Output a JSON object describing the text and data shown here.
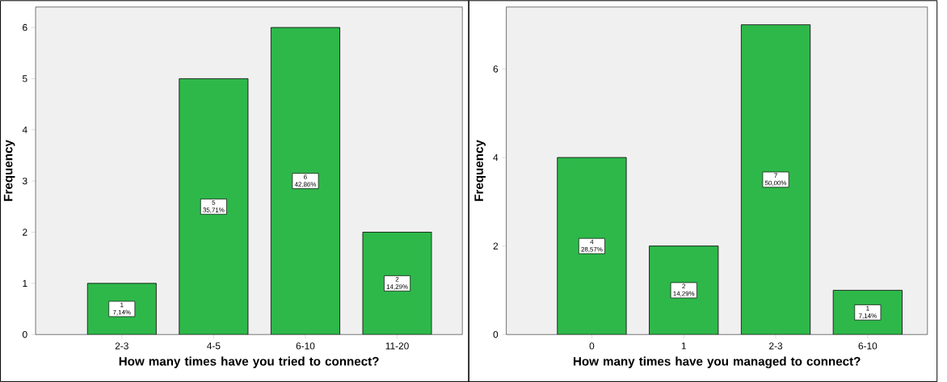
{
  "chart_data": [
    {
      "type": "bar",
      "categories": [
        "2-3",
        "4-5",
        "6-10",
        "11-20"
      ],
      "values": [
        1,
        5,
        6,
        2
      ],
      "color": "#2eb84a",
      "value_labels": [
        "1 7,14%",
        "5 35,71%",
        "6 42,86%",
        "2 14,29%"
      ],
      "xlabel": "How many times have you tried to connect?",
      "ylabel": "Frequency",
      "ylim": [
        0,
        6.4
      ],
      "yticks": [
        0,
        1,
        2,
        3,
        4,
        5,
        6
      ],
      "grid": false
    },
    {
      "type": "bar",
      "categories": [
        "0",
        "1",
        "2-3",
        "6-10"
      ],
      "values": [
        4,
        2,
        7,
        1
      ],
      "color": "#2eb84a",
      "value_labels": [
        "4 28,57%",
        "2 14,29%",
        "7 50,00%",
        "1 7,14%"
      ],
      "xlabel": "How many times have you managed to connect?",
      "ylabel": "Frequency",
      "ylim": [
        0,
        7.4
      ],
      "yticks": [
        0,
        2,
        4,
        6
      ],
      "grid": false
    }
  ]
}
